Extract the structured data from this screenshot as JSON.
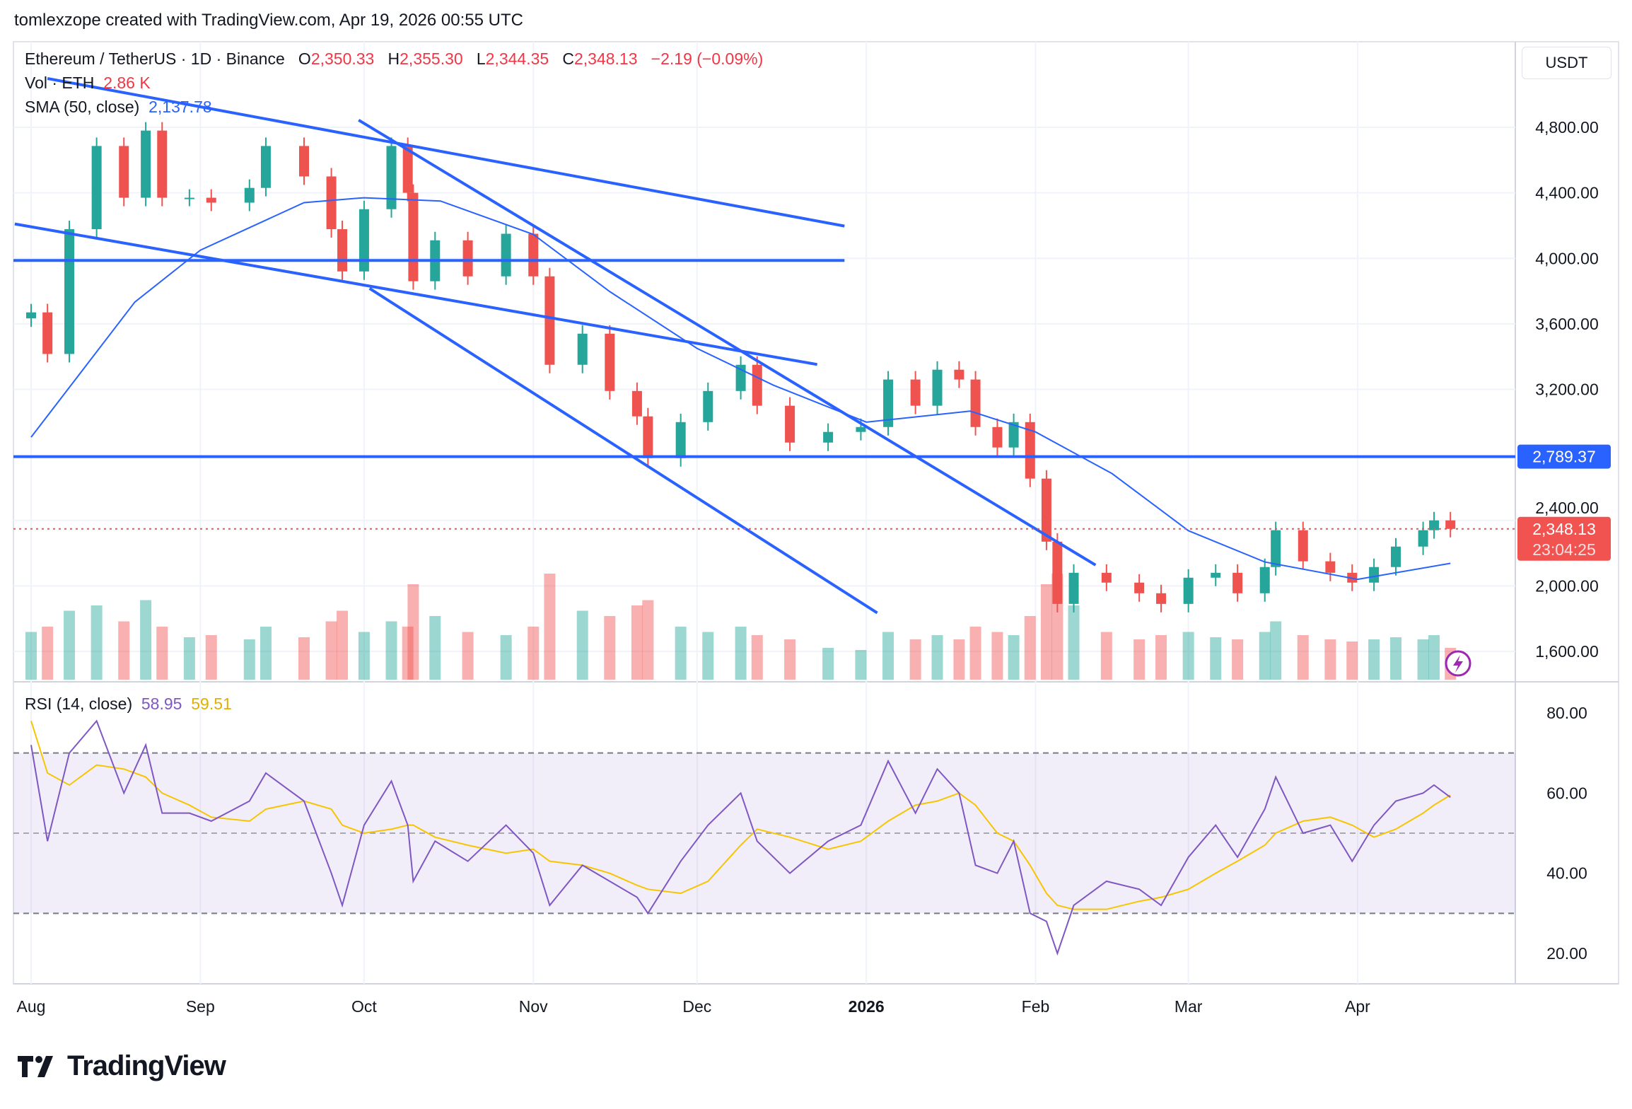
{
  "credit": "tomlexzope created with TradingView.com, Apr 19, 2026 00:55 UTC",
  "legend": {
    "symbol": "Ethereum / TetherUS · 1D · Binance",
    "o_label": "O",
    "o": "2,350.33",
    "h_label": "H",
    "h": "2,355.30",
    "l_label": "L",
    "l": "2,344.35",
    "c_label": "C",
    "c": "2,348.13",
    "change": "−2.19 (−0.09%)",
    "vol_label": "Vol · ETH",
    "vol": "2.86 K",
    "sma_label": "SMA (50, close)",
    "sma": "2,137.78"
  },
  "rsi_legend": {
    "label": "RSI (14, close)",
    "rsi": "58.95",
    "rsi_ma": "59.51"
  },
  "currency": "USDT",
  "last_price": {
    "price": "2,348.13",
    "countdown": "23:04:25"
  },
  "level_label": "2,789.37",
  "logo": "TradingView",
  "colors": {
    "up": "#26a69a",
    "down": "#ef5350",
    "sma": "#2962ff",
    "trendline": "#2962ff",
    "rsi": "#7e57c2",
    "rsi_ma": "#f7c500",
    "rsi_band": "#7e57c2"
  },
  "chart_data": [
    {
      "type": "candlestick",
      "title": "Ethereum / TetherUS · 1D · Binance",
      "y_ticks": [
        "1,600.00",
        "2,000.00",
        "2,400.00",
        "3,200.00",
        "3,600.00",
        "4,000.00",
        "4,400.00",
        "4,800.00"
      ],
      "y_tick_values": [
        1600,
        2000,
        2400,
        3200,
        3600,
        4000,
        4400,
        4800
      ],
      "ylim": [
        1600,
        4800
      ],
      "x_ticks": [
        {
          "label": "Aug",
          "date": "2025-08-01"
        },
        {
          "label": "Sep",
          "date": "2025-09-01"
        },
        {
          "label": "Oct",
          "date": "2025-10-01"
        },
        {
          "label": "Nov",
          "date": "2025-11-01"
        },
        {
          "label": "Dec",
          "date": "2025-12-01"
        },
        {
          "label": "2026",
          "date": "2026-01-01"
        },
        {
          "label": "Feb",
          "date": "2026-02-01"
        },
        {
          "label": "Mar",
          "date": "2026-03-01"
        },
        {
          "label": "Apr",
          "date": "2026-04-01"
        }
      ],
      "dates": [
        "2025-08-01",
        "2025-08-04",
        "2025-08-08",
        "2025-08-13",
        "2025-08-18",
        "2025-08-22",
        "2025-08-25",
        "2025-08-30",
        "2025-09-03",
        "2025-09-10",
        "2025-09-13",
        "2025-09-20",
        "2025-09-25",
        "2025-09-27",
        "2025-10-01",
        "2025-10-06",
        "2025-10-09",
        "2025-10-10",
        "2025-10-14",
        "2025-10-20",
        "2025-10-27",
        "2025-11-01",
        "2025-11-04",
        "2025-11-10",
        "2025-11-15",
        "2025-11-20",
        "2025-11-22",
        "2025-11-28",
        "2025-12-03",
        "2025-12-09",
        "2025-12-12",
        "2025-12-18",
        "2025-12-25",
        "2025-12-31",
        "2026-01-05",
        "2026-01-10",
        "2026-01-14",
        "2026-01-18",
        "2026-01-21",
        "2026-01-25",
        "2026-01-28",
        "2026-01-31",
        "2026-02-03",
        "2026-02-05",
        "2026-02-08",
        "2026-02-14",
        "2026-02-20",
        "2026-02-24",
        "2026-03-01",
        "2026-03-06",
        "2026-03-10",
        "2026-03-15",
        "2026-03-17",
        "2026-03-22",
        "2026-03-27",
        "2026-03-31",
        "2026-04-04",
        "2026-04-08",
        "2026-04-13",
        "2026-04-15",
        "2026-04-18"
      ],
      "close": [
        3670,
        3416,
        4178,
        4686,
        4370,
        4780,
        4370,
        4370,
        4340,
        4430,
        4686,
        4500,
        4178,
        3920,
        4300,
        4686,
        4400,
        3860,
        4110,
        3890,
        4150,
        3890,
        3350,
        3540,
        3190,
        3035,
        2780,
        3000,
        3190,
        3350,
        3100,
        2875,
        2940,
        2970,
        3260,
        3100,
        3320,
        3260,
        2970,
        2845,
        3000,
        2655,
        2270,
        1890,
        2080,
        2020,
        1955,
        1890,
        2050,
        2080,
        1955,
        2115,
        2340,
        2150,
        2080,
        2020,
        2115,
        2240,
        2340,
        2400,
        2348.13
      ],
      "volume": [
        450,
        500,
        650,
        700,
        550,
        750,
        500,
        400,
        420,
        380,
        500,
        400,
        550,
        650,
        450,
        550,
        500,
        900,
        600,
        450,
        420,
        500,
        1000,
        650,
        600,
        700,
        750,
        500,
        450,
        500,
        420,
        380,
        300,
        280,
        450,
        380,
        420,
        380,
        500,
        450,
        420,
        600,
        900,
        1000,
        700,
        450,
        380,
        420,
        450,
        400,
        380,
        450,
        550,
        420,
        380,
        360,
        380,
        400,
        380,
        420,
        300
      ],
      "rsi": [
        72,
        48,
        70,
        78,
        60,
        72,
        55,
        55,
        53,
        58,
        65,
        58,
        40,
        32,
        52,
        63,
        52,
        38,
        48,
        43,
        52,
        45,
        32,
        42,
        38,
        34,
        30,
        43,
        52,
        60,
        48,
        40,
        48,
        52,
        68,
        55,
        66,
        60,
        42,
        40,
        48,
        30,
        28,
        20,
        32,
        38,
        36,
        32,
        44,
        52,
        44,
        56,
        64,
        50,
        52,
        43,
        52,
        58,
        60,
        62,
        58.95
      ],
      "rsi_ma": [
        78,
        65,
        62,
        67,
        66,
        64,
        60,
        57,
        54,
        53,
        56,
        58,
        56,
        52,
        50,
        51,
        52,
        52,
        49,
        47,
        45,
        46,
        43,
        42,
        40,
        37,
        36,
        35,
        38,
        47,
        51,
        49,
        46,
        48,
        53,
        57,
        58,
        60,
        57,
        50,
        48,
        42,
        35,
        32,
        31,
        31,
        33,
        34,
        36,
        40,
        43,
        47,
        50,
        53,
        54,
        52,
        49,
        51,
        55,
        57,
        59.51
      ],
      "sma": {
        "dates": [
          "2025-08-01",
          "2025-08-20",
          "2025-09-01",
          "2025-09-20",
          "2025-10-01",
          "2025-10-15",
          "2025-11-01",
          "2025-11-15",
          "2025-12-01",
          "2025-12-15",
          "2026-01-01",
          "2026-01-20",
          "2026-02-01",
          "2026-02-15",
          "2026-03-01",
          "2026-03-15",
          "2026-04-01",
          "2026-04-18"
        ],
        "values": [
          2908,
          3733,
          4050,
          4340,
          4370,
          4350,
          4146,
          3797,
          3450,
          3225,
          3000,
          3067,
          2940,
          2686,
          2337,
          2146,
          2040,
          2137.78
        ]
      },
      "horizontal_levels": [
        2789.37,
        3987
      ],
      "trendlines": [
        {
          "from": [
            "2025-08-04",
            5098
          ],
          "to": [
            "2025-12-28",
            4197
          ]
        },
        {
          "from": [
            "2025-07-29",
            4210
          ],
          "to": [
            "2025-12-23",
            3352
          ]
        },
        {
          "from": [
            "2025-09-30",
            4844
          ],
          "to": [
            "2026-02-12",
            2127
          ]
        },
        {
          "from": [
            "2025-10-02",
            3816
          ],
          "to": [
            "2026-01-03",
            1835
          ]
        }
      ]
    },
    {
      "type": "line",
      "title": "RSI (14, close)",
      "y_ticks": [
        "20.00",
        "40.00",
        "60.00",
        "80.00"
      ],
      "y_tick_values": [
        20,
        40,
        60,
        80
      ],
      "bands": [
        30,
        50,
        70
      ]
    }
  ]
}
